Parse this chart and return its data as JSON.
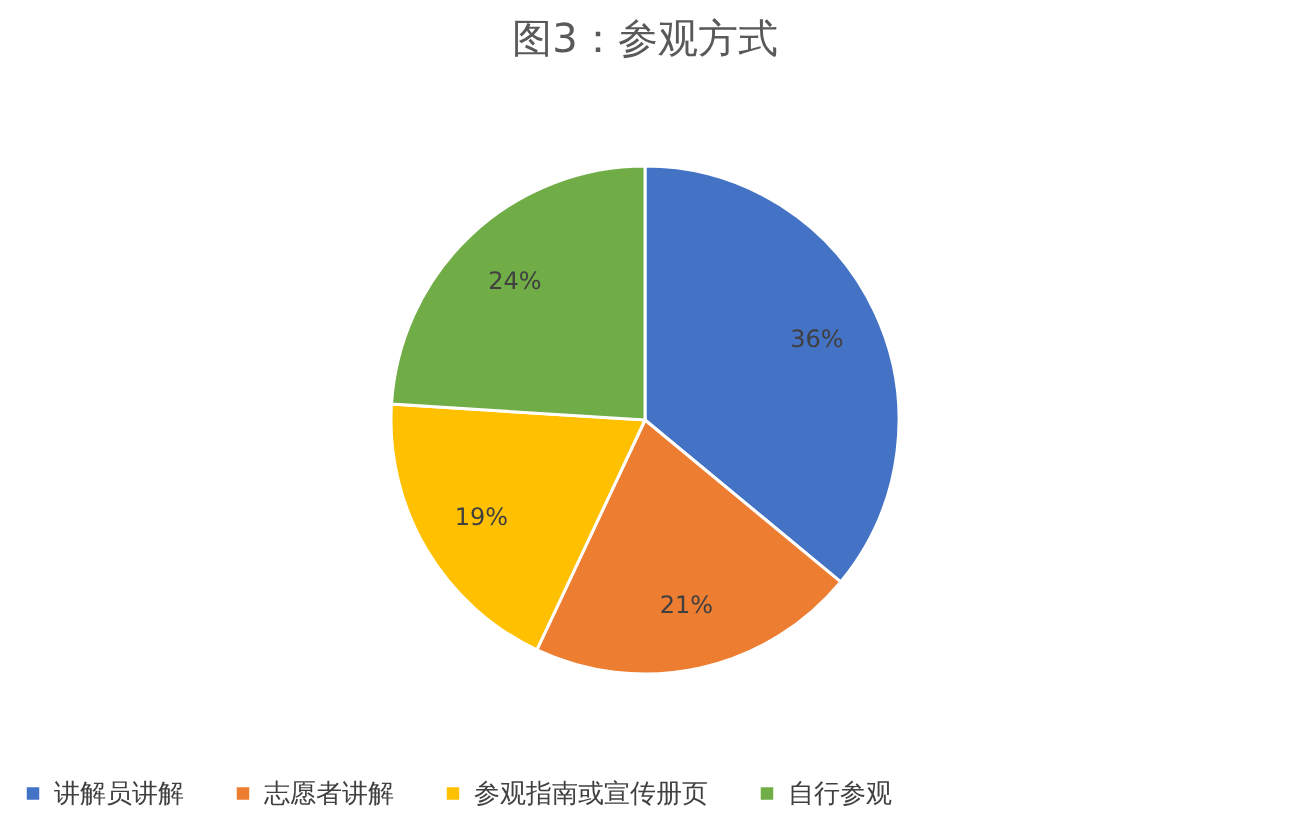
{
  "chart_data": {
    "type": "pie",
    "title": "图3：参观方式",
    "categories": [
      "讲解员讲解",
      "志愿者讲解",
      "参观指南或宣传册页",
      "自行参观"
    ],
    "values": [
      36,
      21,
      19,
      24
    ],
    "colors": [
      "#4472c4",
      "#ed7d31",
      "#ffc000",
      "#70ad47"
    ],
    "value_labels": [
      "36%",
      "21%",
      "19%",
      "24%"
    ],
    "legend": "bottom"
  }
}
